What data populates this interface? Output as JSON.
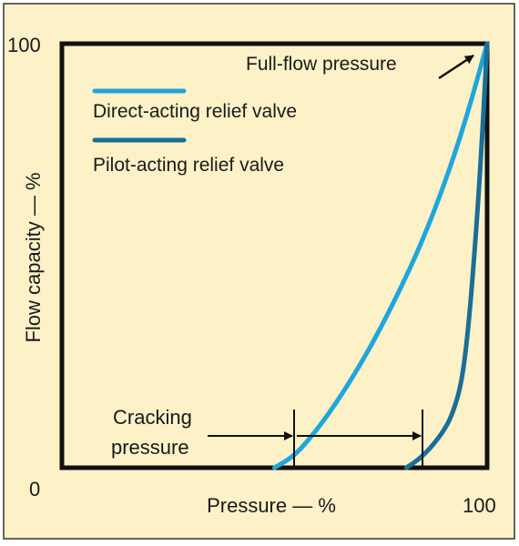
{
  "chart_data": {
    "type": "line",
    "title": "",
    "xlabel": "Pressure — %",
    "ylabel": "Flow capacity — %",
    "xlim": [
      0,
      100
    ],
    "ylim": [
      0,
      100
    ],
    "x_tick_labels": {
      "min": "0",
      "max": "100"
    },
    "y_tick_labels": {
      "max": "100"
    },
    "grid": false,
    "legend_position": "top-left",
    "series": [
      {
        "name": "Direct-acting relief valve",
        "color": "#1fa6dd",
        "x": [
          50.0,
          55.0,
          60.0,
          65.0,
          70.0,
          75.0,
          80.0,
          85.0,
          90.0,
          95.0,
          100.0
        ],
        "y": [
          0.0,
          3.0,
          9.0,
          16.0,
          24.0,
          33.0,
          43.0,
          54.0,
          67.0,
          82.0,
          100.0
        ]
      },
      {
        "name": "Pilot-acting relief valve",
        "color": "#1a6f96",
        "x": [
          81.0,
          84.0,
          87.0,
          90.0,
          92.0,
          94.0,
          95.5,
          97.0,
          98.5,
          100.0
        ],
        "y": [
          0.0,
          2.0,
          5.0,
          9.0,
          13.0,
          20.0,
          32.0,
          50.0,
          72.0,
          100.0
        ]
      }
    ],
    "annotations": [
      {
        "text": "Full-flow pressure",
        "x": 100,
        "y": 100
      },
      {
        "text_line1": "Cracking",
        "text_line2": "pressure",
        "range_x": [
          55.0,
          85.0
        ]
      }
    ]
  }
}
